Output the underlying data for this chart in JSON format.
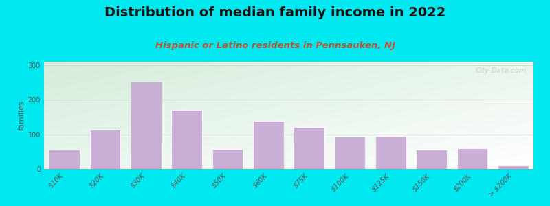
{
  "title": "Distribution of median family income in 2022",
  "subtitle": "Hispanic or Latino residents in Pennsauken, NJ",
  "ylabel": "families",
  "categories": [
    "$10K",
    "$20K",
    "$30K",
    "$40K",
    "$50K",
    "$60K",
    "$75K",
    "$100K",
    "$125K",
    "$150K",
    "$200K",
    "> $200K"
  ],
  "values": [
    55,
    113,
    252,
    170,
    58,
    140,
    122,
    93,
    95,
    55,
    60,
    10
  ],
  "bar_color": "#c9aed6",
  "bar_edge_color": "#ffffff",
  "bg_outer": "#00e8f0",
  "title_color": "#111111",
  "subtitle_color": "#c05030",
  "ylabel_color": "#555555",
  "tick_color": "#555555",
  "yticks": [
    0,
    100,
    200,
    300
  ],
  "ylim": [
    0,
    310
  ],
  "watermark": "City-Data.com",
  "title_fontsize": 14,
  "subtitle_fontsize": 9.5,
  "ylabel_fontsize": 8,
  "tick_fontsize": 7
}
